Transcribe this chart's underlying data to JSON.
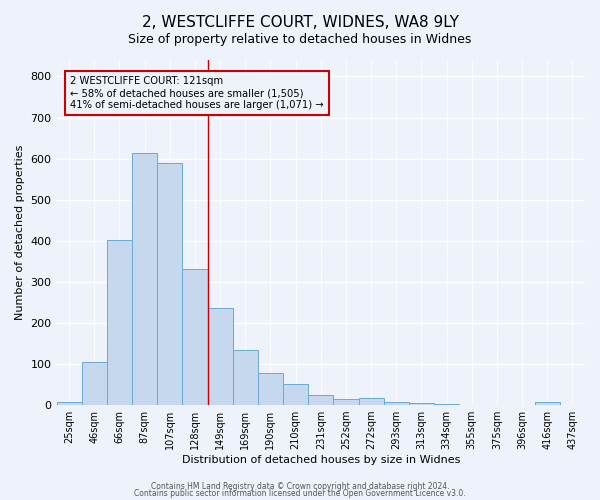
{
  "title": "2, WESTCLIFFE COURT, WIDNES, WA8 9LY",
  "subtitle": "Size of property relative to detached houses in Widnes",
  "xlabel": "Distribution of detached houses by size in Widnes",
  "ylabel": "Number of detached properties",
  "bar_labels": [
    "25sqm",
    "46sqm",
    "66sqm",
    "87sqm",
    "107sqm",
    "128sqm",
    "149sqm",
    "169sqm",
    "190sqm",
    "210sqm",
    "231sqm",
    "252sqm",
    "272sqm",
    "293sqm",
    "313sqm",
    "334sqm",
    "355sqm",
    "375sqm",
    "396sqm",
    "416sqm",
    "437sqm"
  ],
  "bar_values": [
    7,
    106,
    402,
    614,
    590,
    331,
    237,
    134,
    79,
    52,
    24,
    15,
    18,
    8,
    4,
    2,
    0,
    0,
    0,
    8,
    0
  ],
  "bar_color": "#c5d8ee",
  "bar_edgecolor": "#6aaad4",
  "vline_x": 5.5,
  "vline_color": "#cc0000",
  "annotation_text": "2 WESTCLIFFE COURT: 121sqm\n← 58% of detached houses are smaller (1,505)\n41% of semi-detached houses are larger (1,071) →",
  "ylim": [
    0,
    840
  ],
  "yticks": [
    0,
    100,
    200,
    300,
    400,
    500,
    600,
    700,
    800
  ],
  "footnote1": "Contains HM Land Registry data © Crown copyright and database right 2024.",
  "footnote2": "Contains public sector information licensed under the Open Government Licence v3.0.",
  "background_color": "#eef2fb",
  "grid_color": "#ffffff",
  "title_fontsize": 11,
  "label_fontsize": 8,
  "tick_fontsize": 7
}
